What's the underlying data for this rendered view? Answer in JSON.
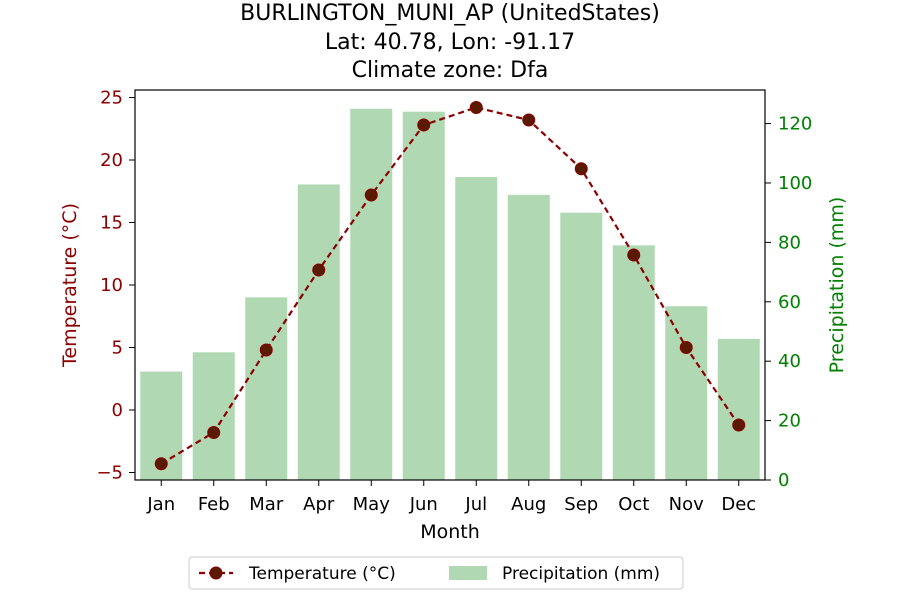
{
  "chart_data": {
    "type": "bar+line",
    "title_lines": [
      "BURLINGTON_MUNI_AP (UnitedStates)",
      "Lat: 40.78, Lon: -91.17",
      "Climate zone: Dfa"
    ],
    "xlabel": "Month",
    "categories": [
      "Jan",
      "Feb",
      "Mar",
      "Apr",
      "May",
      "Jun",
      "Jul",
      "Aug",
      "Sep",
      "Oct",
      "Nov",
      "Dec"
    ],
    "temperature": {
      "name": "Temperature (°C)",
      "axis_label": "Temperature (°C)",
      "values": [
        -4.3,
        -1.8,
        4.8,
        11.2,
        17.2,
        22.8,
        24.2,
        23.2,
        19.3,
        12.4,
        5.0,
        -1.2
      ],
      "ylim": [
        -5.6,
        25.6
      ],
      "ticks": [
        -5,
        0,
        5,
        10,
        15,
        20,
        25
      ],
      "tick_labels": [
        "−5",
        "0",
        "5",
        "10",
        "15",
        "20",
        "25"
      ],
      "color": "#8b0000",
      "marker_fill": "#5a1a00"
    },
    "precipitation": {
      "name": "Precipitation (mm)",
      "axis_label": "Precipitation (mm)",
      "values": [
        36.5,
        43.0,
        61.5,
        99.5,
        125.0,
        124.0,
        102.0,
        96.0,
        90.0,
        79.0,
        58.5,
        47.5
      ],
      "ylim": [
        0,
        131.3
      ],
      "ticks": [
        0,
        20,
        40,
        60,
        80,
        100,
        120
      ],
      "tick_labels": [
        "0",
        "20",
        "40",
        "60",
        "80",
        "100",
        "120"
      ],
      "color": "#b0d9b3",
      "axis_color": "#008000"
    },
    "legend": {
      "placement": "bottom-center"
    },
    "grid": false
  }
}
